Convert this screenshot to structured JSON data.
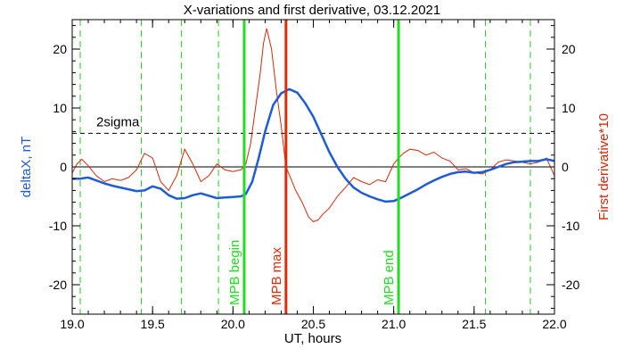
{
  "chart_data": {
    "type": "line",
    "title": "X-variations and first derivative, 03.12.2021",
    "xlabel": "UT, hours",
    "ylabel_left": "deltaX, nT",
    "ylabel_right": "First derivative*10",
    "xlim": [
      19.0,
      22.0
    ],
    "ylim": [
      -25,
      25
    ],
    "x_ticks": [
      "19.0",
      "19.5",
      "20.0",
      "20.5",
      "21.0",
      "21.5",
      "22.0"
    ],
    "y_ticks": [
      "-20",
      "-10",
      "0",
      "10",
      "20"
    ],
    "colors": {
      "deltaX": "#1e5bd6",
      "derivative": "#d22a0a",
      "mpb": "#22dd22",
      "mpb_max": "#e02a0a",
      "dashed_green": "#22cc22",
      "frame": "#000000"
    },
    "sigma": {
      "label": "2sigma",
      "value": 5.7
    },
    "series": [
      {
        "name": "deltaX",
        "axis": "left",
        "x": [
          19.0,
          19.05,
          19.1,
          19.15,
          19.2,
          19.25,
          19.3,
          19.35,
          19.4,
          19.45,
          19.5,
          19.55,
          19.6,
          19.65,
          19.7,
          19.75,
          19.8,
          19.85,
          19.9,
          19.95,
          20.0,
          20.05,
          20.08,
          20.12,
          20.16,
          20.2,
          20.25,
          20.3,
          20.35,
          20.4,
          20.45,
          20.5,
          20.55,
          20.6,
          20.65,
          20.7,
          20.75,
          20.8,
          20.85,
          20.9,
          20.95,
          21.0,
          21.05,
          21.1,
          21.15,
          21.2,
          21.25,
          21.3,
          21.35,
          21.4,
          21.45,
          21.5,
          21.55,
          21.6,
          21.65,
          21.7,
          21.75,
          21.8,
          21.85,
          21.9,
          21.95,
          22.0
        ],
        "y": [
          -2.0,
          -2.0,
          -1.8,
          -2.3,
          -2.8,
          -3.2,
          -3.5,
          -3.8,
          -4.1,
          -4.0,
          -3.3,
          -3.7,
          -4.8,
          -5.4,
          -5.3,
          -4.8,
          -4.5,
          -4.9,
          -5.3,
          -5.2,
          -5.1,
          -5.0,
          -4.6,
          -2.5,
          1.5,
          6.0,
          10.5,
          12.5,
          13.2,
          12.6,
          10.8,
          8.5,
          5.5,
          2.5,
          0.0,
          -2.0,
          -3.5,
          -4.4,
          -5.0,
          -5.5,
          -5.9,
          -5.8,
          -5.2,
          -4.5,
          -3.8,
          -3.0,
          -2.3,
          -1.7,
          -1.2,
          -0.9,
          -0.8,
          -1.0,
          -0.9,
          -0.5,
          0.0,
          0.5,
          0.8,
          0.9,
          1.0,
          1.0,
          1.3,
          1.0
        ]
      },
      {
        "name": "First derivative*10",
        "axis": "right",
        "x": [
          19.0,
          19.03,
          19.06,
          19.1,
          19.15,
          19.2,
          19.25,
          19.3,
          19.35,
          19.4,
          19.45,
          19.5,
          19.55,
          19.6,
          19.65,
          19.7,
          19.75,
          19.8,
          19.85,
          19.9,
          19.95,
          20.0,
          20.05,
          20.08,
          20.11,
          20.14,
          20.17,
          20.19,
          20.21,
          20.24,
          20.27,
          20.3,
          20.33,
          20.36,
          20.39,
          20.43,
          20.47,
          20.5,
          20.53,
          20.56,
          20.6,
          20.65,
          20.7,
          20.75,
          20.8,
          20.85,
          20.9,
          20.95,
          21.0,
          21.03,
          21.06,
          21.1,
          21.15,
          21.2,
          21.25,
          21.3,
          21.35,
          21.4,
          21.45,
          21.5,
          21.55,
          21.6,
          21.65,
          21.7,
          21.75,
          21.8,
          21.85,
          21.9,
          21.95,
          22.0
        ],
        "y": [
          -1.0,
          0.5,
          1.3,
          0.2,
          -1.5,
          -2.5,
          -2.0,
          -2.3,
          -1.8,
          -0.5,
          2.3,
          1.5,
          -2.5,
          -4.0,
          -1.5,
          3.0,
          0.5,
          -2.5,
          -1.5,
          0.5,
          -0.5,
          -0.8,
          -0.5,
          0.5,
          4.0,
          10.0,
          16.0,
          21.0,
          23.5,
          20.0,
          13.0,
          7.0,
          0.0,
          -2.0,
          -4.0,
          -6.0,
          -8.5,
          -9.3,
          -9.0,
          -8.0,
          -7.0,
          -5.0,
          -3.5,
          -1.8,
          -2.5,
          -3.0,
          -2.2,
          -2.5,
          0.5,
          1.5,
          2.3,
          3.0,
          2.8,
          2.0,
          2.5,
          1.5,
          1.0,
          -0.5,
          -0.3,
          -1.0,
          -1.2,
          -0.5,
          0.8,
          1.2,
          1.0,
          0.8,
          0.5,
          0.8,
          1.5,
          -1.5
        ]
      }
    ],
    "green_dashed_lines": [
      19.05,
      19.43,
      19.68,
      19.91,
      21.57,
      21.85
    ],
    "markers": [
      {
        "x": 20.07,
        "label": "MPB begin",
        "kind": "begin"
      },
      {
        "x": 20.33,
        "label": "MPB max",
        "kind": "max"
      },
      {
        "x": 21.03,
        "label": "MPB end",
        "kind": "end"
      }
    ]
  }
}
